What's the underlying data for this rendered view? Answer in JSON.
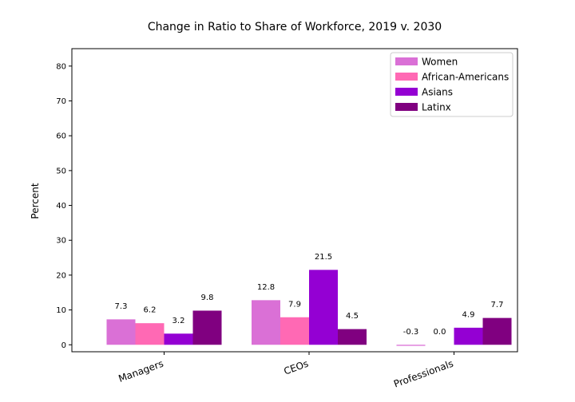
{
  "chart_data": {
    "type": "bar",
    "title": "Change in Ratio to Share of Workforce, 2019 v. 2030",
    "xlabel": "",
    "ylabel": "Percent",
    "categories": [
      "Managers",
      "CEOs",
      "Professionals"
    ],
    "series": [
      {
        "name": "Women",
        "values": [
          7.3,
          12.8,
          -0.3
        ],
        "labels": [
          "7.3",
          "12.8",
          "-0.3"
        ],
        "color": "#da70d6"
      },
      {
        "name": "African-Americans",
        "values": [
          6.2,
          7.9,
          0.0
        ],
        "labels": [
          "6.2",
          "7.9",
          "0.0"
        ],
        "color": "#ff69b4"
      },
      {
        "name": "Asians",
        "values": [
          3.2,
          21.5,
          4.9
        ],
        "labels": [
          "3.2",
          "21.5",
          "4.9"
        ],
        "color": "#9400d3"
      },
      {
        "name": "Latinx",
        "values": [
          9.8,
          4.5,
          7.7
        ],
        "labels": [
          "9.8",
          "4.5",
          "7.7"
        ],
        "color": "#800080"
      }
    ],
    "ylim": [
      -2,
      85
    ],
    "yticks": [
      0,
      10,
      20,
      30,
      40,
      50,
      60,
      70,
      80
    ],
    "grid": false,
    "legend_position": "top-right"
  }
}
